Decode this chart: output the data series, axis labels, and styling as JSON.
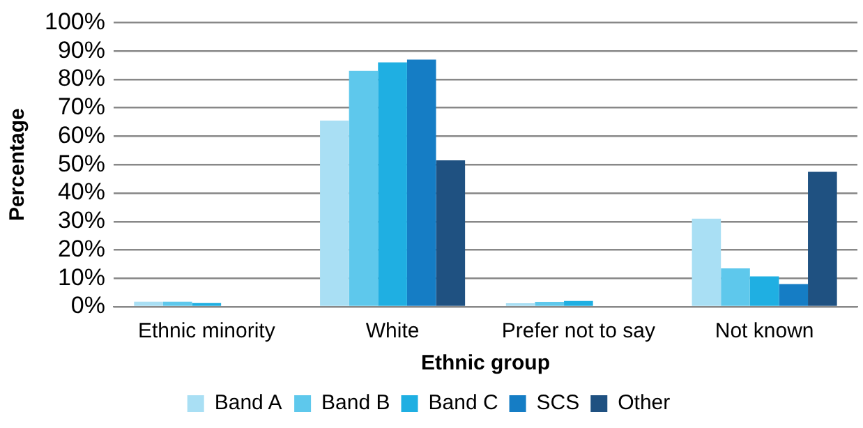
{
  "chart_data": {
    "type": "bar",
    "xlabel": "Ethnic group",
    "ylabel": "Percentage",
    "categories": [
      "Ethnic minority",
      "White",
      "Prefer not to say",
      "Not known"
    ],
    "series": [
      {
        "name": "Band A",
        "color": "#a9dff4",
        "values": [
          1.8,
          65.5,
          1.2,
          31
        ]
      },
      {
        "name": "Band B",
        "color": "#5ec8ec",
        "values": [
          1.8,
          83,
          1.7,
          13.5
        ]
      },
      {
        "name": "Band C",
        "color": "#1fafe2",
        "values": [
          1.3,
          86,
          2,
          10.7
        ]
      },
      {
        "name": "SCS",
        "color": "#157dc5",
        "values": [
          0,
          87,
          0,
          8
        ]
      },
      {
        "name": "Other",
        "color": "#1f5181",
        "values": [
          0,
          51.5,
          0,
          47.5
        ]
      }
    ],
    "ylim": [
      0,
      100
    ],
    "yticks": [
      {
        "value": 0,
        "label": "0%"
      },
      {
        "value": 10,
        "label": "10%"
      },
      {
        "value": 20,
        "label": "20%"
      },
      {
        "value": 30,
        "label": "30%"
      },
      {
        "value": 40,
        "label": "40%"
      },
      {
        "value": 50,
        "label": "50%"
      },
      {
        "value": 60,
        "label": "60%"
      },
      {
        "value": 70,
        "label": "70%"
      },
      {
        "value": 80,
        "label": "80%"
      },
      {
        "value": 90,
        "label": "90%"
      },
      {
        "value": 100,
        "label": "100%"
      }
    ],
    "grid": "y",
    "legend": "bottom"
  }
}
